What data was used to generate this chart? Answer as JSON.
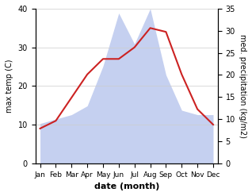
{
  "months": [
    "Jan",
    "Feb",
    "Mar",
    "Apr",
    "May",
    "Jun",
    "Jul",
    "Aug",
    "Sep",
    "Oct",
    "Nov",
    "Dec"
  ],
  "month_positions": [
    0,
    1,
    2,
    3,
    4,
    5,
    6,
    7,
    8,
    9,
    10,
    11
  ],
  "temperature": [
    9,
    11,
    17,
    23,
    27,
    27,
    30,
    35,
    34,
    23,
    14,
    10
  ],
  "precipitation": [
    9,
    10,
    11,
    13,
    22,
    34,
    27,
    35,
    20,
    12,
    11,
    11
  ],
  "temp_color": "#cc2222",
  "precip_fill_color": "#c5d0f0",
  "temp_ylim": [
    0,
    40
  ],
  "precip_ylim": [
    0,
    35
  ],
  "temp_yticks": [
    0,
    10,
    20,
    30,
    40
  ],
  "precip_yticks": [
    0,
    5,
    10,
    15,
    20,
    25,
    30,
    35
  ],
  "ylabel_left": "max temp (C)",
  "ylabel_right": "med. precipitation (kg/m2)",
  "xlabel": "date (month)",
  "background_color": "#ffffff"
}
